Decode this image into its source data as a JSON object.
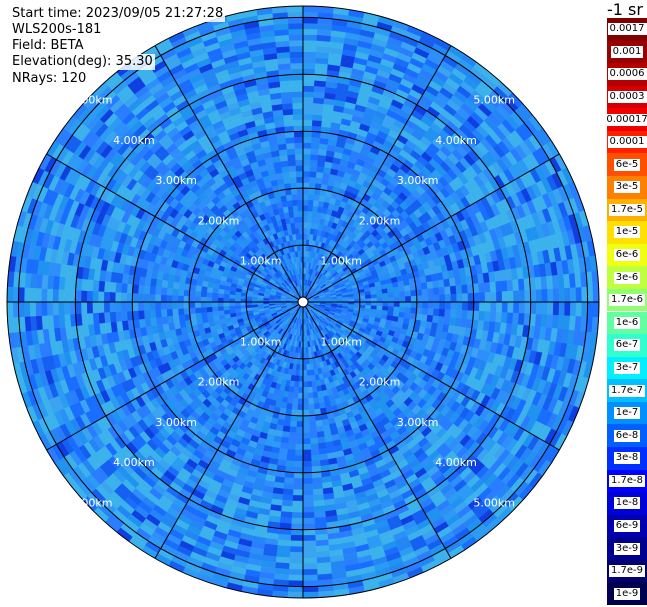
{
  "info": {
    "start_time": "Start time: 2023/09/05 21:27:28",
    "instrument": "WLS200s-181",
    "field": "Field: BETA",
    "elevation": "Elevation(deg): 35.30",
    "nrays": "NRays: 120"
  },
  "colorbar": {
    "unit_label": "-1 sr",
    "ticks": [
      "0.0017",
      "0.001",
      "0.0006",
      "0.0003",
      "0.00017",
      "0.0001",
      "6e-5",
      "3e-5",
      "1.7e-5",
      "1e-5",
      "6e-6",
      "3e-6",
      "1.7e-6",
      "1e-6",
      "6e-7",
      "3e-7",
      "1.7e-7",
      "1e-7",
      "6e-8",
      "3e-8",
      "1.7e-8",
      "1e-8",
      "6e-9",
      "3e-9",
      "1.7e-9",
      "1e-9"
    ],
    "colors": [
      "#800000",
      "#9a0000",
      "#b40000",
      "#d20000",
      "#f00000",
      "#ff2000",
      "#ff5000",
      "#ff8000",
      "#ffb000",
      "#ffe000",
      "#f0ff10",
      "#c0ff40",
      "#90ff70",
      "#60ffa0",
      "#30ffd0",
      "#00f0ff",
      "#00c0ff",
      "#0090ff",
      "#0060ff",
      "#0030ff",
      "#0000ff",
      "#0000d8",
      "#0000b0",
      "#000090",
      "#000070",
      "#000050"
    ]
  },
  "chart_data": {
    "type": "polar",
    "field": "BETA",
    "range_km": [
      1,
      2,
      3,
      4,
      5
    ],
    "ring_labels": [
      "1.00km",
      "2.00km",
      "3.00km",
      "4.00km",
      "5.00km"
    ],
    "n_rays": 120,
    "elevation_deg": 35.3,
    "spokes_deg": [
      0,
      30,
      60,
      90,
      120,
      150,
      180,
      210,
      240,
      270,
      300,
      330
    ],
    "dominant_value_range": [
      "1e-8",
      "3e-8"
    ]
  }
}
